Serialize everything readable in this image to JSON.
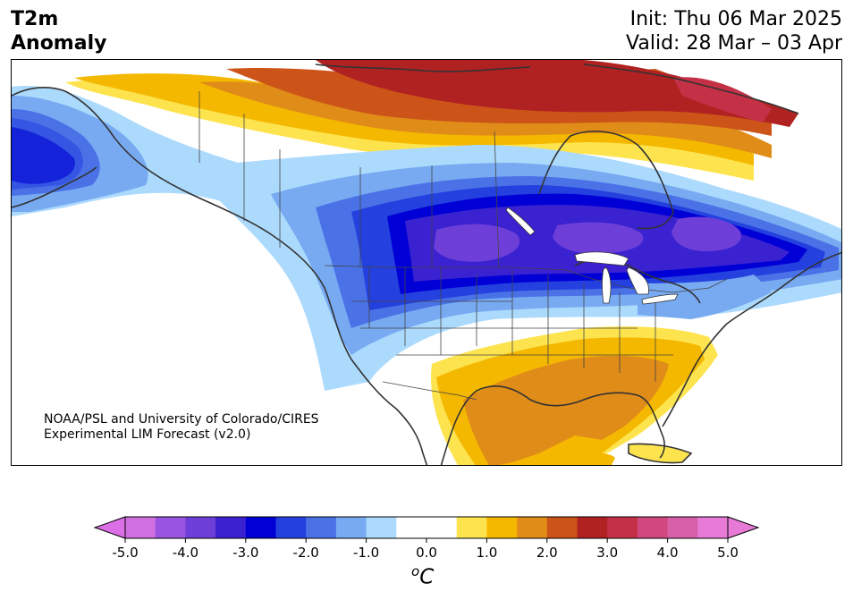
{
  "title": {
    "line1": "T2m",
    "line2": "Anomaly",
    "init": "Init: Thu 06 Mar 2025",
    "valid": "Valid: 28 Mar – 03 Apr"
  },
  "credit": {
    "line1": "NOAA/PSL and University of Colorado/CIRES",
    "line2": "Experimental LIM Forecast (v2.0)"
  },
  "colorbar": {
    "unit_super": "o",
    "unit_main": "C",
    "min": -5.0,
    "max": 5.0,
    "ticks": [
      "-5.0",
      "-4.0",
      "-3.0",
      "-2.0",
      "-1.0",
      "0.0",
      "1.0",
      "2.0",
      "3.0",
      "4.0",
      "5.0"
    ],
    "under_color": "#dc6ee6",
    "over_color": "#e67ad6",
    "bins": [
      {
        "from": -5.0,
        "to": -4.5,
        "color": "#d070e0"
      },
      {
        "from": -4.5,
        "to": -4.0,
        "color": "#9a55e0"
      },
      {
        "from": -4.0,
        "to": -3.5,
        "color": "#6e3fd8"
      },
      {
        "from": -3.5,
        "to": -3.0,
        "color": "#3a22d0"
      },
      {
        "from": -3.0,
        "to": -2.5,
        "color": "#0000d6"
      },
      {
        "from": -2.5,
        "to": -2.0,
        "color": "#2440de"
      },
      {
        "from": -2.0,
        "to": -1.5,
        "color": "#4a72e6"
      },
      {
        "from": -1.5,
        "to": -1.0,
        "color": "#78aaf2"
      },
      {
        "from": -1.0,
        "to": -0.5,
        "color": "#acdafd"
      },
      {
        "from": -0.5,
        "to": 0.5,
        "color": "#ffffff"
      },
      {
        "from": 0.5,
        "to": 1.0,
        "color": "#fde44f"
      },
      {
        "from": 1.0,
        "to": 1.5,
        "color": "#f5b800"
      },
      {
        "from": 1.5,
        "to": 2.0,
        "color": "#e08c18"
      },
      {
        "from": 2.0,
        "to": 2.5,
        "color": "#cc5418"
      },
      {
        "from": 2.5,
        "to": 3.0,
        "color": "#b02222"
      },
      {
        "from": 3.0,
        "to": 3.5,
        "color": "#c43046"
      },
      {
        "from": 3.5,
        "to": 4.0,
        "color": "#d0487e"
      },
      {
        "from": 4.0,
        "to": 4.5,
        "color": "#d860a8"
      },
      {
        "from": 4.5,
        "to": 5.0,
        "color": "#e67ad6"
      }
    ]
  },
  "colors": {
    "land_outline": "#333333",
    "border": "#444444"
  }
}
